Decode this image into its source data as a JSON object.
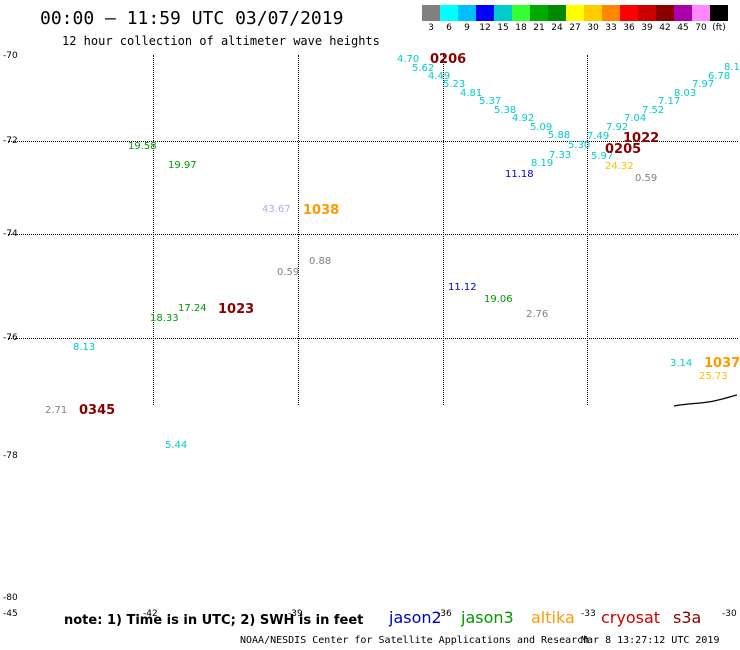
{
  "title": "00:00 – 11:59 UTC 03/07/2019",
  "subtitle": "12 hour collection of altimeter wave heights",
  "scale": {
    "labels": [
      "3",
      "6",
      "9",
      "12",
      "15",
      "18",
      "21",
      "24",
      "27",
      "30",
      "33",
      "36",
      "39",
      "42",
      "45",
      "70",
      "(ft)"
    ],
    "colors": [
      "#808080",
      "#00ffff",
      "#00bfff",
      "#0000ff",
      "#00cccc",
      "#33ff33",
      "#00aa00",
      "#008800",
      "#ffff00",
      "#ffcc00",
      "#ff8800",
      "#ff0000",
      "#cc0000",
      "#880000",
      "#aa00aa",
      "#ff88ff",
      "#000000"
    ]
  },
  "lat_ticks": [
    "-70",
    "-72",
    "-74",
    "-76",
    "-78",
    "-80"
  ],
  "lon_ticks": [
    "-45",
    "-42",
    "-39",
    "-36",
    "-33",
    "-30"
  ],
  "colors": {
    "cyan": "#00cccc",
    "green": "#009900",
    "darkred": "#880000",
    "orange": "#ff9900",
    "blue": "#0000cc",
    "gray": "#808080",
    "lavender": "#aaaaff",
    "gold": "#ffbb00"
  },
  "track_values": [
    {
      "text": "4.70",
      "color": "#00cccc"
    },
    {
      "text": "5.62",
      "color": "#00cccc"
    },
    {
      "text": "4.49",
      "color": "#00cccc"
    },
    {
      "text": "5.23",
      "color": "#00cccc"
    },
    {
      "text": "4.81",
      "color": "#00cccc"
    },
    {
      "text": "5.37",
      "color": "#00cccc"
    },
    {
      "text": "5.38",
      "color": "#00cccc"
    },
    {
      "text": "4.92",
      "color": "#00cccc"
    },
    {
      "text": "5.09",
      "color": "#00cccc"
    },
    {
      "text": "5.88",
      "color": "#00cccc"
    },
    {
      "text": "5.30",
      "color": "#00cccc"
    },
    {
      "text": "7.49",
      "color": "#00cccc"
    },
    {
      "text": "7.92",
      "color": "#00cccc"
    },
    {
      "text": "7.04",
      "color": "#00cccc"
    },
    {
      "text": "7.52",
      "color": "#00cccc"
    },
    {
      "text": "7.17",
      "color": "#00cccc"
    },
    {
      "text": "8.03",
      "color": "#00cccc"
    },
    {
      "text": "7.97",
      "color": "#00cccc"
    },
    {
      "text": "6.78",
      "color": "#00cccc"
    },
    {
      "text": "8.1",
      "color": "#00cccc"
    },
    {
      "text": "7.33",
      "color": "#00cccc"
    },
    {
      "text": "8.19",
      "color": "#00cccc"
    },
    {
      "text": "5.97",
      "color": "#00cccc"
    },
    {
      "text": "11.18",
      "color": "#0000cc"
    },
    {
      "text": "24.32",
      "color": "#ffbb00"
    },
    {
      "text": "0.59",
      "color": "#808080"
    },
    {
      "text": "19.58",
      "color": "#009900"
    },
    {
      "text": "19.97",
      "color": "#009900"
    },
    {
      "text": "43.67",
      "color": "#aaaaff"
    },
    {
      "text": "0.88",
      "color": "#808080"
    },
    {
      "text": "0.59",
      "color": "#808080"
    },
    {
      "text": "17.24",
      "color": "#009900"
    },
    {
      "text": "18.33",
      "color": "#009900"
    },
    {
      "text": "11.12",
      "color": "#0000cc"
    },
    {
      "text": "19.06",
      "color": "#009900"
    },
    {
      "text": "2.76",
      "color": "#808080"
    },
    {
      "text": "8.13",
      "color": "#00cccc"
    },
    {
      "text": "2.71",
      "color": "#808080"
    },
    {
      "text": "5.44",
      "color": "#00cccc"
    },
    {
      "text": "3.14",
      "color": "#00cccc"
    },
    {
      "text": "25.73",
      "color": "#ffbb00"
    }
  ],
  "time_labels": [
    {
      "text": "0206",
      "color": "#880000"
    },
    {
      "text": "1022",
      "color": "#880000"
    },
    {
      "text": "0205",
      "color": "#880000"
    },
    {
      "text": "1038",
      "color": "#ff9900"
    },
    {
      "text": "1023",
      "color": "#880000"
    },
    {
      "text": "0345",
      "color": "#880000"
    },
    {
      "text": "1037",
      "color": "#ff9900"
    }
  ],
  "note": "note: 1) Time is in UTC; 2) SWH is in feet",
  "satellites": [
    {
      "name": "jason2",
      "color": "#0000cc"
    },
    {
      "name": "jason3",
      "color": "#009900"
    },
    {
      "name": "altika",
      "color": "#ff9900"
    },
    {
      "name": "cryosat",
      "color": "#cc0000"
    },
    {
      "name": "s3a",
      "color": "#880000"
    }
  ],
  "credit": "NOAA/NESDIS Center for Satellite Applications and Research",
  "timestamp": "Mar  8 13:27:12 UTC 2019"
}
